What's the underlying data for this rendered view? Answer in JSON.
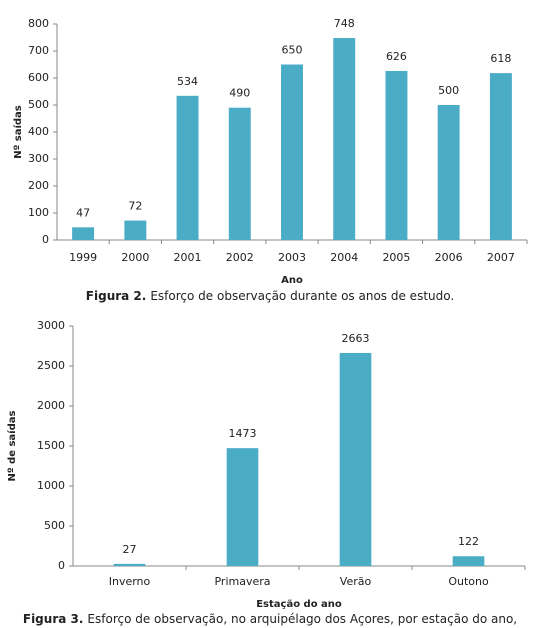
{
  "chart_data": [
    {
      "type": "bar",
      "x_label": "Ano",
      "y_label": "Nº saídas",
      "caption_label": "Figura 2.",
      "caption": "Esforço de observação durante os  anos de estudo.",
      "categories": [
        "1999",
        "2000",
        "2001",
        "2002",
        "2003",
        "2004",
        "2005",
        "2006",
        "2007"
      ],
      "values": [
        47,
        72,
        534,
        490,
        650,
        748,
        626,
        500,
        618
      ],
      "color": "#4bacc6",
      "ylim": [
        0,
        800
      ],
      "yticks": [
        0,
        100,
        200,
        300,
        400,
        500,
        600,
        700,
        800
      ]
    },
    {
      "type": "bar",
      "x_label": "Estação do ano",
      "y_label": "Nº de saídas",
      "caption_label": "Figura 3.",
      "caption": "Esforço de observação, no arquipélago dos Açores, por estação do ano,",
      "categories": [
        "Inverno",
        "Primavera",
        "Verão",
        "Outono"
      ],
      "values": [
        27,
        1473,
        2663,
        122
      ],
      "color": "#4bacc6",
      "ylim": [
        0,
        3000
      ],
      "yticks": [
        0,
        500,
        1000,
        1500,
        2000,
        2500,
        3000
      ]
    }
  ]
}
